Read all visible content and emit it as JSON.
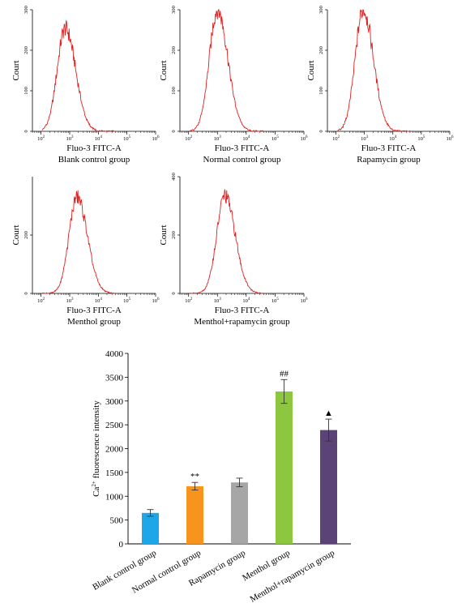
{
  "chart_data": [
    {
      "type": "line",
      "panel": "Blank control group",
      "xlabel": "Fluo-3 FITC-A",
      "ylabel": "Court",
      "x_scale": "log",
      "xlim": [
        50,
        1000000
      ],
      "x_ticks": [
        "10^2",
        "10^3",
        "10^4",
        "10^5",
        "10^6"
      ],
      "ylim": [
        0,
        300
      ],
      "y_ticks": [
        "0",
        "100",
        "200",
        "300"
      ],
      "peak_x": 700,
      "peak_y": 255,
      "color": "#e02020"
    },
    {
      "type": "line",
      "panel": "Normal control group",
      "xlabel": "Fluo-3 FITC-A",
      "ylabel": "Court",
      "x_scale": "log",
      "xlim": [
        50,
        1000000
      ],
      "x_ticks": [
        "10^2",
        "10^3",
        "10^4",
        "10^5",
        "10^6"
      ],
      "ylim": [
        0,
        300
      ],
      "y_ticks": [
        "0",
        "100",
        "200",
        "300"
      ],
      "peak_x": 1000,
      "peak_y": 300,
      "color": "#e02020"
    },
    {
      "type": "line",
      "panel": "Rapamycin group",
      "xlabel": "Fluo-3 FITC-A",
      "ylabel": "Court",
      "x_scale": "log",
      "xlim": [
        50,
        1000000
      ],
      "x_ticks": [
        "10^2",
        "10^3",
        "10^4",
        "10^5",
        "10^6"
      ],
      "ylim": [
        0,
        300
      ],
      "y_ticks": [
        "0",
        "100",
        "200",
        "300"
      ],
      "peak_x": 900,
      "peak_y": 300,
      "color": "#e02020"
    },
    {
      "type": "line",
      "panel": "Menthol group",
      "xlabel": "Fluo-3 FITC-A",
      "ylabel": "Court",
      "x_scale": "log",
      "xlim": [
        50,
        1000000
      ],
      "x_ticks": [
        "10^2",
        "10^3",
        "10^4",
        "10^5",
        "10^6"
      ],
      "ylim": [
        0,
        400
      ],
      "y_ticks": [
        "0",
        "200"
      ],
      "peak_x": 1800,
      "peak_y": 330,
      "color": "#e02020"
    },
    {
      "type": "line",
      "panel": "Menthol+rapamycin group",
      "xlabel": "Fluo-3 FITC-A",
      "ylabel": "Court",
      "x_scale": "log",
      "xlim": [
        50,
        1000000
      ],
      "x_ticks": [
        "10^2",
        "10^3",
        "10^4",
        "10^5",
        "10^6"
      ],
      "ylim": [
        0,
        400
      ],
      "y_ticks": [
        "0",
        "200",
        "400"
      ],
      "peak_x": 1800,
      "peak_y": 335,
      "color": "#e02020"
    },
    {
      "type": "bar",
      "categories": [
        "Blank control group",
        "Normal control group",
        "Rapamycin group",
        "Menthol group",
        "Menthol+rapamycin group"
      ],
      "values": [
        650,
        1210,
        1290,
        3200,
        2390
      ],
      "errors": [
        70,
        80,
        90,
        250,
        230
      ],
      "annotations": [
        "",
        "**",
        "",
        "##",
        "▲"
      ],
      "colors": [
        "#1ea7e8",
        "#f7941d",
        "#a6a6a6",
        "#8dc63f",
        "#5b4378"
      ],
      "ylabel": "Ca2+ fluorescence intensity",
      "ylim": [
        0,
        4000
      ],
      "y_ticks": [
        0,
        500,
        1000,
        1500,
        2000,
        2500,
        3000,
        3500,
        4000
      ],
      "grid": false
    }
  ]
}
